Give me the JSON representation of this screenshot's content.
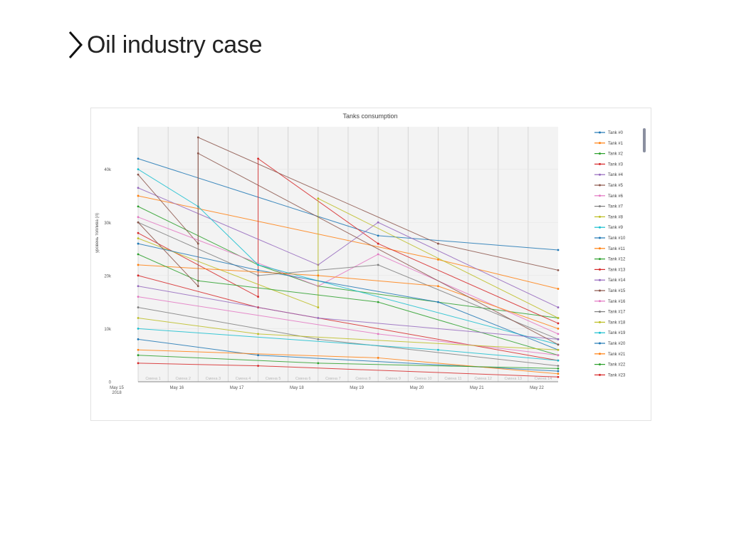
{
  "slide": {
    "title": "Oil industry case"
  },
  "chart_data": {
    "type": "line",
    "title": "Tanks consumption",
    "xlabel": "",
    "ylabel": "уровень топлива (л)",
    "ylim": [
      0,
      48000
    ],
    "x_start": "2018-05-15",
    "x_end": "2018-05-22",
    "x_ticks": [
      {
        "date": "2018-05-15",
        "label": "May 15",
        "sub": "2018"
      },
      {
        "date": "2018-05-16",
        "label": "May 16",
        "sub": ""
      },
      {
        "date": "2018-05-17",
        "label": "May 17",
        "sub": ""
      },
      {
        "date": "2018-05-18",
        "label": "May 18",
        "sub": ""
      },
      {
        "date": "2018-05-19",
        "label": "May 19",
        "sub": ""
      },
      {
        "date": "2018-05-20",
        "label": "May 20",
        "sub": ""
      },
      {
        "date": "2018-05-21",
        "label": "May 21",
        "sub": ""
      },
      {
        "date": "2018-05-22",
        "label": "May 22",
        "sub": ""
      }
    ],
    "y_ticks": [
      {
        "value": 0,
        "label": "0"
      },
      {
        "value": 10000,
        "label": "10k"
      },
      {
        "value": 20000,
        "label": "20k"
      },
      {
        "value": 30000,
        "label": "30k"
      },
      {
        "value": 40000,
        "label": "40k"
      }
    ],
    "shift_bands": [
      "Смена 1",
      "Смена 2",
      "Смена 3",
      "Смена 4",
      "Смена 5",
      "Смена 6",
      "Смена 7",
      "Смена 8",
      "Смена 9",
      "Смена 10",
      "Смена 11",
      "Смена 12",
      "Смена 13",
      "Смена 14"
    ],
    "grid": true,
    "legend_position": "right",
    "series": [
      {
        "name": "Tank #0",
        "color": "#1f77b4",
        "x": [
          "2018-05-15",
          "2018-05-19",
          "2018-05-22"
        ],
        "y": [
          42000,
          27500,
          24800
        ]
      },
      {
        "name": "Tank #1",
        "color": "#ff7f0e",
        "x": [
          "2018-05-15",
          "2018-05-20",
          "2018-05-22"
        ],
        "y": [
          35000,
          23000,
          17500
        ]
      },
      {
        "name": "Tank #2",
        "color": "#2ca02c",
        "x": [
          "2018-05-15",
          "2018-05-17",
          "2018-05-18",
          "2018-05-22"
        ],
        "y": [
          33000,
          22000,
          18000,
          12000
        ]
      },
      {
        "name": "Tank #3",
        "color": "#d62728",
        "x": [
          "2018-05-15",
          "2018-05-17",
          "2018-05-17",
          "2018-05-19",
          "2018-05-22"
        ],
        "y": [
          28000,
          16000,
          42000,
          26000,
          11000
        ]
      },
      {
        "name": "Tank #4",
        "color": "#9467bd",
        "x": [
          "2018-05-15",
          "2018-05-18",
          "2018-05-19",
          "2018-05-22"
        ],
        "y": [
          36500,
          22000,
          30000,
          14000
        ]
      },
      {
        "name": "Tank #5",
        "color": "#8c564b",
        "x": [
          "2018-05-15",
          "2018-05-16",
          "2018-05-16",
          "2018-05-20",
          "2018-05-22"
        ],
        "y": [
          39000,
          26000,
          46000,
          26000,
          21000
        ]
      },
      {
        "name": "Tank #6",
        "color": "#e377c2",
        "x": [
          "2018-05-15",
          "2018-05-18",
          "2018-05-19",
          "2018-05-22"
        ],
        "y": [
          31000,
          18000,
          24000,
          9000
        ]
      },
      {
        "name": "Tank #7",
        "color": "#7f7f7f",
        "x": [
          "2018-05-15",
          "2018-05-17",
          "2018-05-19",
          "2018-05-22"
        ],
        "y": [
          30000,
          20000,
          22000,
          8000
        ]
      },
      {
        "name": "Tank #8",
        "color": "#bcbd22",
        "x": [
          "2018-05-15",
          "2018-05-18",
          "2018-05-18",
          "2018-05-22"
        ],
        "y": [
          27000,
          14000,
          34500,
          12000
        ]
      },
      {
        "name": "Tank #9",
        "color": "#17becf",
        "x": [
          "2018-05-15",
          "2018-05-16",
          "2018-05-17",
          "2018-05-22"
        ],
        "y": [
          40000,
          33000,
          22000,
          7000
        ]
      },
      {
        "name": "Tank #10",
        "color": "#1f77b4",
        "x": [
          "2018-05-15",
          "2018-05-17",
          "2018-05-20",
          "2018-05-22"
        ],
        "y": [
          26000,
          21000,
          15000,
          6000
        ]
      },
      {
        "name": "Tank #11",
        "color": "#ff7f0e",
        "x": [
          "2018-05-15",
          "2018-05-18",
          "2018-05-20",
          "2018-05-22"
        ],
        "y": [
          22000,
          20000,
          18000,
          10000
        ]
      },
      {
        "name": "Tank #12",
        "color": "#2ca02c",
        "x": [
          "2018-05-15",
          "2018-05-16",
          "2018-05-19",
          "2018-05-22"
        ],
        "y": [
          24000,
          19000,
          15000,
          5000
        ]
      },
      {
        "name": "Tank #13",
        "color": "#d62728",
        "x": [
          "2018-05-15",
          "2018-05-17",
          "2018-05-22"
        ],
        "y": [
          20000,
          14000,
          4000
        ]
      },
      {
        "name": "Tank #14",
        "color": "#9467bd",
        "x": [
          "2018-05-15",
          "2018-05-18",
          "2018-05-22"
        ],
        "y": [
          18000,
          12000,
          8000
        ]
      },
      {
        "name": "Tank #15",
        "color": "#8c564b",
        "x": [
          "2018-05-15",
          "2018-05-16",
          "2018-05-16",
          "2018-05-22"
        ],
        "y": [
          30000,
          18000,
          43000,
          7000
        ]
      },
      {
        "name": "Tank #16",
        "color": "#e377c2",
        "x": [
          "2018-05-15",
          "2018-05-19",
          "2018-05-22"
        ],
        "y": [
          16000,
          9000,
          5000
        ]
      },
      {
        "name": "Tank #17",
        "color": "#7f7f7f",
        "x": [
          "2018-05-15",
          "2018-05-18",
          "2018-05-22"
        ],
        "y": [
          14000,
          8000,
          3000
        ]
      },
      {
        "name": "Tank #18",
        "color": "#bcbd22",
        "x": [
          "2018-05-15",
          "2018-05-17",
          "2018-05-22"
        ],
        "y": [
          12000,
          9000,
          6000
        ]
      },
      {
        "name": "Tank #19",
        "color": "#17becf",
        "x": [
          "2018-05-15",
          "2018-05-20",
          "2018-05-22"
        ],
        "y": [
          10000,
          6000,
          4000
        ]
      },
      {
        "name": "Tank #20",
        "color": "#1f77b4",
        "x": [
          "2018-05-15",
          "2018-05-17",
          "2018-05-22"
        ],
        "y": [
          8000,
          5000,
          2000
        ]
      },
      {
        "name": "Tank #21",
        "color": "#ff7f0e",
        "x": [
          "2018-05-15",
          "2018-05-19",
          "2018-05-22"
        ],
        "y": [
          6000,
          4500,
          1500
        ]
      },
      {
        "name": "Tank #22",
        "color": "#2ca02c",
        "x": [
          "2018-05-15",
          "2018-05-18",
          "2018-05-22"
        ],
        "y": [
          5000,
          3500,
          2500
        ]
      },
      {
        "name": "Tank #23",
        "color": "#d62728",
        "x": [
          "2018-05-15",
          "2018-05-17",
          "2018-05-22"
        ],
        "y": [
          3500,
          3000,
          900
        ]
      }
    ]
  }
}
